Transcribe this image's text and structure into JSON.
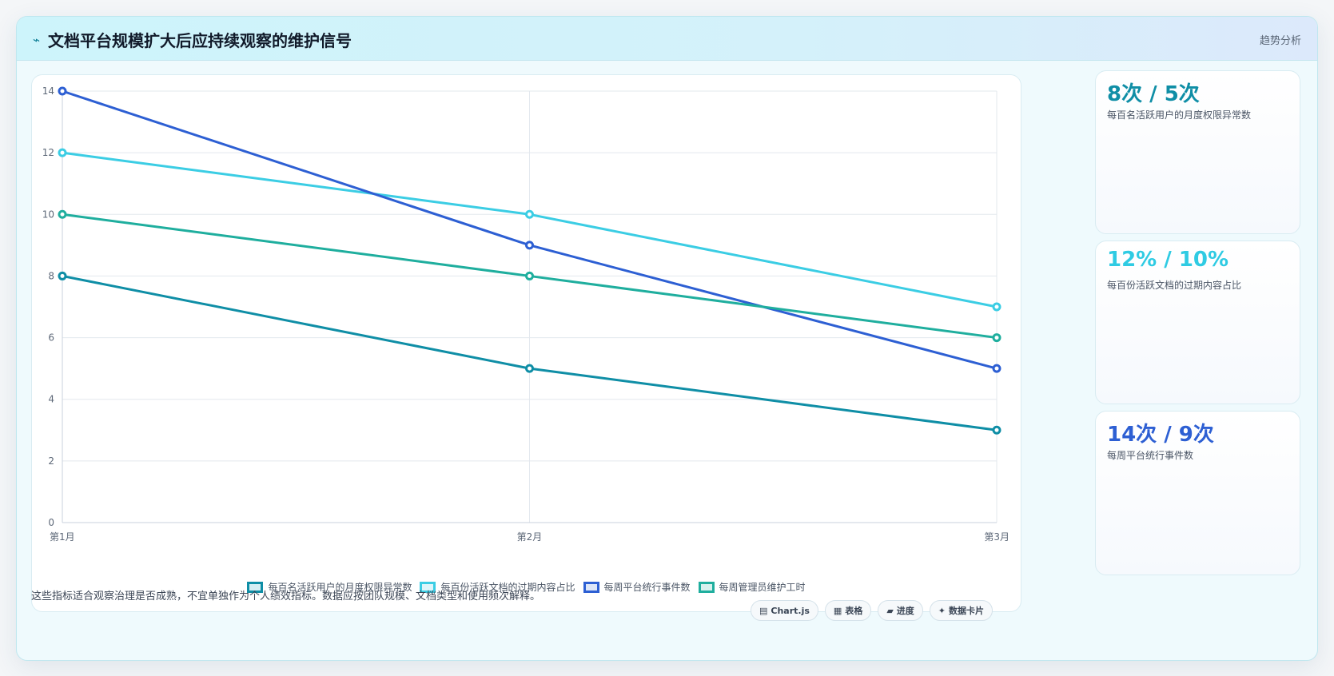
{
  "header": {
    "icon": "pulse-icon",
    "title": "文档平台规模扩大后应持续观察的维护信号",
    "tag": "趋势分析"
  },
  "chart_data": {
    "type": "line",
    "categories": [
      "第1月",
      "第2月",
      "第3月"
    ],
    "ylim": [
      0,
      14
    ],
    "yticks": [
      0,
      2,
      4,
      6,
      8,
      10,
      12,
      14
    ],
    "grid": true,
    "legend_position": "bottom",
    "series": [
      {
        "name": "每百名活跃用户的月度权限异常数",
        "color": "#0f8ea6",
        "values": [
          8,
          5,
          3
        ]
      },
      {
        "name": "每百份活跃文档的过期内容占比",
        "color": "#3bcde4",
        "values": [
          12,
          10,
          7
        ]
      },
      {
        "name": "每周平台统行事件数",
        "color": "#2d5fd3",
        "values": [
          14,
          9,
          5
        ]
      },
      {
        "name": "每周管理员维护工时",
        "color": "#1fae9e",
        "values": [
          10,
          8,
          6
        ]
      }
    ]
  },
  "stats": [
    {
      "value": "8次 / 5次",
      "label": "每百名活跃用户的月度权限异常数",
      "color": "#0f8ea6"
    },
    {
      "value": "12% / 10%",
      "label": "每百份活跃文档的过期内容占比",
      "color": "#2fcbe3"
    },
    {
      "value": "14次 / 9次",
      "label": "每周平台统行事件数",
      "color": "#2d5fd3"
    }
  ],
  "footnote": "这些指标适合观察治理是否成熟，不宜单独作为个人绩效指标。数据应按团队规模、文档类型和使用频次解释。",
  "chips": [
    {
      "icon": "▤",
      "label": "Chart.js"
    },
    {
      "icon": "▦",
      "label": "表格"
    },
    {
      "icon": "▰",
      "label": "进度"
    },
    {
      "icon": "✦",
      "label": "数据卡片"
    }
  ]
}
